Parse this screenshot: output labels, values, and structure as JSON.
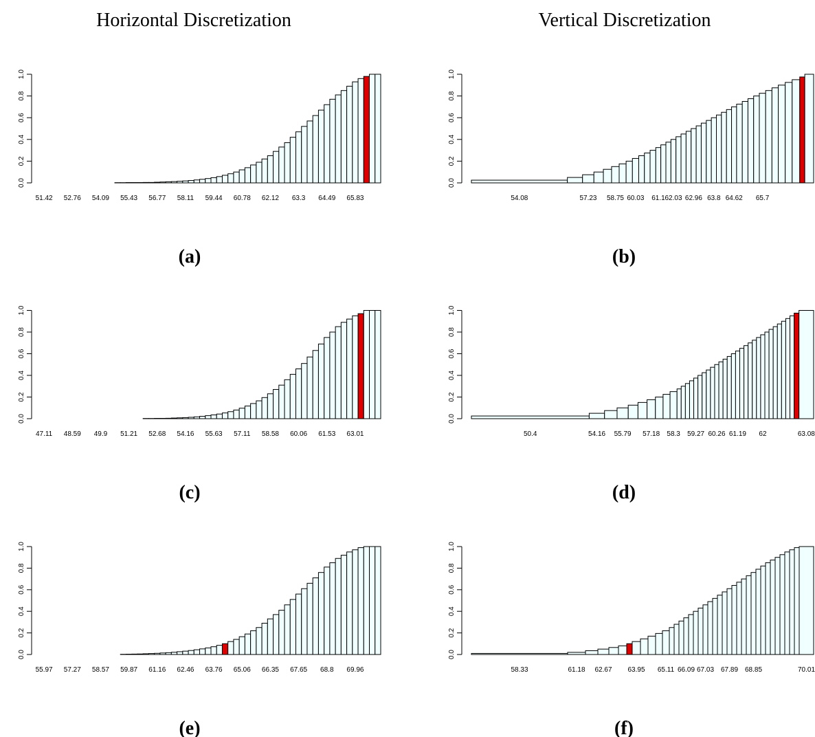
{
  "titles": [
    "Horizontal Discretization",
    "Vertical Discretization"
  ],
  "chart_data": [
    {
      "type": "bar",
      "caption": "(a)",
      "color": "#f0ffff",
      "highlight_index": 57,
      "highlight_color": "#dd0000",
      "ylim": [
        0,
        1
      ],
      "yticks": [
        {
          "value": 0,
          "label": "0.0"
        },
        0.2,
        0.4,
        0.6,
        0.8,
        {
          "value": 1,
          "label": "1.0"
        }
      ],
      "categories": [
        "51.42",
        null,
        null,
        null,
        null,
        "52.76",
        null,
        null,
        null,
        null,
        "54.09",
        null,
        null,
        null,
        null,
        "55.43",
        null,
        null,
        null,
        null,
        "56.77",
        null,
        null,
        null,
        null,
        "58.11",
        null,
        null,
        null,
        null,
        "59.44",
        null,
        null,
        null,
        null,
        "60.78",
        null,
        null,
        null,
        null,
        "62.12",
        null,
        null,
        null,
        null,
        "63.3",
        null,
        null,
        null,
        null,
        "64.49",
        null,
        null,
        null,
        null,
        "65.83",
        null,
        null,
        null,
        null
      ],
      "values": [
        0,
        0,
        0,
        0,
        0,
        0,
        0,
        0,
        0,
        0,
        0,
        0,
        0,
        0.002,
        0.002,
        0.003,
        0.003,
        0.003,
        0.004,
        0.004,
        0.006,
        0.008,
        0.01,
        0.012,
        0.015,
        0.018,
        0.022,
        0.027,
        0.033,
        0.04,
        0.048,
        0.058,
        0.07,
        0.084,
        0.1,
        0.12,
        0.14,
        0.165,
        0.19,
        0.22,
        0.25,
        0.29,
        0.33,
        0.37,
        0.42,
        0.47,
        0.52,
        0.57,
        0.62,
        0.67,
        0.72,
        0.77,
        0.81,
        0.85,
        0.89,
        0.93,
        0.96,
        0.98,
        1,
        1
      ]
    },
    {
      "type": "vbar",
      "caption": "(b)",
      "color": "#f0ffff",
      "highlight_index": 38,
      "highlight_color": "#dd0000",
      "ylim": [
        0,
        1
      ],
      "yticks": [
        {
          "value": 0,
          "label": "0.0"
        },
        0.2,
        0.4,
        0.6,
        0.8,
        {
          "value": 1,
          "label": "1.0"
        }
      ],
      "categories": [
        "54.08",
        null,
        "57.23",
        null,
        null,
        "58.75",
        null,
        null,
        "60.03",
        null,
        null,
        null,
        "61.1",
        null,
        null,
        "62.03",
        null,
        null,
        null,
        "62.96",
        null,
        null,
        null,
        "63.8",
        null,
        null,
        null,
        "64.62",
        null,
        null,
        null,
        null,
        "65.7",
        null,
        null,
        null,
        null,
        null,
        null,
        null
      ],
      "widths": [
        152,
        24,
        18,
        15,
        13,
        12,
        11,
        10,
        10,
        9,
        9,
        9,
        8,
        8,
        8,
        8,
        8,
        8,
        8,
        8,
        8,
        8,
        8,
        8,
        8,
        8,
        8,
        8,
        9,
        9,
        9,
        9,
        10,
        10,
        10,
        11,
        11,
        12,
        8,
        14
      ],
      "values": [
        0.025,
        0.05,
        0.075,
        0.1,
        0.125,
        0.15,
        0.175,
        0.2,
        0.225,
        0.25,
        0.275,
        0.3,
        0.325,
        0.35,
        0.375,
        0.4,
        0.425,
        0.45,
        0.475,
        0.5,
        0.525,
        0.55,
        0.575,
        0.6,
        0.625,
        0.65,
        0.675,
        0.7,
        0.725,
        0.75,
        0.775,
        0.8,
        0.825,
        0.85,
        0.875,
        0.9,
        0.925,
        0.95,
        0.975,
        1
      ]
    },
    {
      "type": "bar",
      "caption": "(c)",
      "color": "#f0ffff",
      "highlight_index": 56,
      "highlight_color": "#dd0000",
      "ylim": [
        0,
        1
      ],
      "yticks": [
        {
          "value": 0,
          "label": "0.0"
        },
        0.2,
        0.4,
        0.6,
        0.8,
        {
          "value": 1,
          "label": "1.0"
        }
      ],
      "categories": [
        "47.11",
        null,
        null,
        null,
        null,
        "48.59",
        null,
        null,
        null,
        null,
        "49.9",
        null,
        null,
        null,
        null,
        "51.21",
        null,
        null,
        null,
        null,
        "52.68",
        null,
        null,
        null,
        null,
        "54.16",
        null,
        null,
        null,
        null,
        "55.63",
        null,
        null,
        null,
        null,
        "57.11",
        null,
        null,
        null,
        null,
        "58.58",
        null,
        null,
        null,
        null,
        "60.06",
        null,
        null,
        null,
        null,
        "61.53",
        null,
        null,
        null,
        null,
        "63.01",
        null,
        null,
        null,
        null
      ],
      "values": [
        0,
        0,
        0,
        0,
        0,
        0,
        0,
        0,
        0,
        0,
        0,
        0,
        0,
        0,
        0,
        0,
        0,
        0,
        0.002,
        0.002,
        0.003,
        0.003,
        0.004,
        0.006,
        0.008,
        0.01,
        0.013,
        0.017,
        0.022,
        0.028,
        0.035,
        0.043,
        0.053,
        0.065,
        0.08,
        0.097,
        0.117,
        0.14,
        0.165,
        0.195,
        0.23,
        0.27,
        0.31,
        0.36,
        0.41,
        0.46,
        0.51,
        0.57,
        0.63,
        0.69,
        0.75,
        0.8,
        0.85,
        0.89,
        0.92,
        0.95,
        0.97,
        1,
        1,
        1
      ]
    },
    {
      "type": "vbar",
      "caption": "(d)",
      "color": "#f0ffff",
      "highlight_index": 38,
      "highlight_color": "#dd0000",
      "ylim": [
        0,
        1
      ],
      "yticks": [
        {
          "value": 0,
          "label": "0.0"
        },
        0.2,
        0.4,
        0.6,
        0.8,
        {
          "value": 1,
          "label": "1.0"
        }
      ],
      "categories": [
        "50.4",
        "54.16",
        null,
        "55.79",
        null,
        null,
        "57.18",
        null,
        null,
        "58.3",
        null,
        null,
        null,
        null,
        "59.27",
        null,
        null,
        null,
        null,
        "60.26",
        null,
        null,
        null,
        null,
        "61.19",
        null,
        null,
        null,
        null,
        null,
        "62",
        null,
        null,
        null,
        null,
        null,
        null,
        null,
        null,
        "63.08"
      ],
      "widths": [
        169,
        22,
        18,
        16,
        14,
        13,
        12,
        11,
        10,
        10,
        6,
        6,
        6,
        6,
        6,
        6,
        6,
        6,
        6,
        6,
        6,
        6,
        6,
        6,
        6,
        6,
        6,
        6,
        6,
        6,
        6,
        6,
        6,
        6,
        6,
        6,
        6,
        6,
        7,
        21
      ],
      "values": [
        0.025,
        0.05,
        0.075,
        0.1,
        0.125,
        0.15,
        0.175,
        0.2,
        0.225,
        0.25,
        0.275,
        0.3,
        0.325,
        0.35,
        0.375,
        0.4,
        0.425,
        0.45,
        0.475,
        0.5,
        0.525,
        0.55,
        0.575,
        0.6,
        0.625,
        0.65,
        0.675,
        0.7,
        0.725,
        0.75,
        0.775,
        0.8,
        0.825,
        0.85,
        0.875,
        0.9,
        0.925,
        0.95,
        0.975,
        1
      ]
    },
    {
      "type": "bar",
      "caption": "(e)",
      "color": "#f0ffff",
      "highlight_index": 32,
      "highlight_color": "#dd0000",
      "ylim": [
        0,
        1
      ],
      "yticks": [
        {
          "value": 0,
          "label": "0.0"
        },
        0.2,
        0.4,
        0.6,
        0.8,
        {
          "value": 1,
          "label": "1.0"
        }
      ],
      "categories": [
        "55.97",
        null,
        null,
        null,
        null,
        "57.27",
        null,
        null,
        null,
        null,
        "58.57",
        null,
        null,
        null,
        null,
        "59.87",
        null,
        null,
        null,
        null,
        "61.16",
        null,
        null,
        null,
        null,
        "62.46",
        null,
        null,
        null,
        null,
        "63.76",
        null,
        null,
        null,
        null,
        "65.06",
        null,
        null,
        null,
        null,
        "66.35",
        null,
        null,
        null,
        null,
        "67.65",
        null,
        null,
        null,
        null,
        "68.8",
        null,
        null,
        null,
        null,
        "69.96",
        null,
        null,
        null,
        null
      ],
      "values": [
        0,
        0,
        0,
        0,
        0,
        0,
        0,
        0,
        0,
        0,
        0,
        0,
        0,
        0,
        0.002,
        0.003,
        0.004,
        0.005,
        0.007,
        0.009,
        0.011,
        0.014,
        0.017,
        0.021,
        0.026,
        0.031,
        0.037,
        0.044,
        0.052,
        0.061,
        0.072,
        0.085,
        0.1,
        0.12,
        0.14,
        0.165,
        0.19,
        0.22,
        0.25,
        0.29,
        0.33,
        0.37,
        0.41,
        0.46,
        0.51,
        0.56,
        0.61,
        0.66,
        0.71,
        0.76,
        0.81,
        0.85,
        0.89,
        0.92,
        0.95,
        0.97,
        0.99,
        1,
        1,
        1
      ]
    },
    {
      "type": "vbar",
      "caption": "(f)",
      "color": "#f0ffff",
      "highlight_index": 6,
      "highlight_color": "#dd0000",
      "ylim": [
        0,
        1
      ],
      "yticks": [
        {
          "value": 0,
          "label": "0.0"
        },
        0.2,
        0.4,
        0.6,
        0.8,
        {
          "value": 1,
          "label": "1.0"
        }
      ],
      "categories": [
        "58.33",
        "61.18",
        null,
        "62.67",
        null,
        null,
        null,
        "63.95",
        null,
        null,
        null,
        "65.11",
        null,
        null,
        null,
        "66.09",
        null,
        null,
        null,
        "67.03",
        null,
        null,
        null,
        null,
        "67.89",
        null,
        null,
        null,
        null,
        "68.85",
        null,
        null,
        null,
        null,
        null,
        null,
        null,
        null,
        null,
        "70.01"
      ],
      "widths": [
        140,
        26,
        18,
        16,
        14,
        12,
        8,
        12,
        11,
        11,
        10,
        10,
        7,
        7,
        7,
        7,
        7,
        7,
        7,
        7,
        7,
        7,
        7,
        7,
        7,
        7,
        7,
        7,
        7,
        7,
        7,
        7,
        7,
        7,
        7,
        7,
        7,
        7,
        7,
        21
      ],
      "values": [
        0.01,
        0.02,
        0.035,
        0.05,
        0.065,
        0.08,
        0.1,
        0.12,
        0.145,
        0.17,
        0.195,
        0.22,
        0.25,
        0.28,
        0.31,
        0.34,
        0.37,
        0.4,
        0.43,
        0.46,
        0.49,
        0.52,
        0.55,
        0.58,
        0.61,
        0.64,
        0.67,
        0.7,
        0.73,
        0.76,
        0.79,
        0.82,
        0.85,
        0.875,
        0.9,
        0.925,
        0.95,
        0.97,
        0.99,
        1
      ]
    }
  ]
}
